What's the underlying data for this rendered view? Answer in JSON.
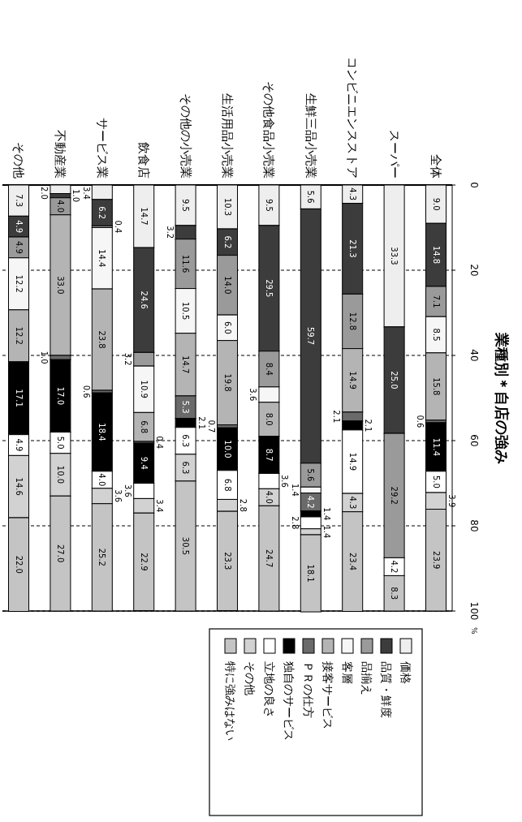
{
  "chart_data": {
    "type": "bar",
    "stacked": true,
    "title": "業種別＊自店の強み",
    "ylabel": "%",
    "categories": [
      "その他",
      "不動産業",
      "サービス業",
      "飲食店",
      "その他の小売業",
      "生活用品小売業",
      "その他食品小売業",
      "生鮮三品小売業",
      "コンビニエンスストア",
      "スーパー",
      "全体"
    ],
    "ylim": [
      100,
      0
    ],
    "yticks": [
      0,
      20,
      40,
      60,
      80,
      100
    ],
    "grid": "y",
    "legend": "bottom right",
    "series": [
      {
        "name": "価格",
        "color": "#eeeeee",
        "values": [
          7.3,
          2.0,
          3.4,
          14.7,
          9.5,
          10.3,
          9.5,
          5.6,
          4.3,
          33.3,
          9.0
        ],
        "value_labels": [
          "7.3",
          "2.0",
          "3.4",
          "14.7",
          "9.5",
          "10.3",
          "9.5",
          "5.6",
          "4.3",
          "33.3",
          "9.0"
        ]
      },
      {
        "name": "品質・鮮度",
        "color": "#3c3c3c",
        "values": [
          4.9,
          1.0,
          6.2,
          24.6,
          3.2,
          6.2,
          29.5,
          59.7,
          21.3,
          25.0,
          14.8
        ],
        "value_labels": [
          "4.9",
          "1.0",
          "6.2",
          "24.6",
          "3.2",
          "6.2",
          "29.5",
          "59.7",
          "21.3",
          "25.0",
          "14.8"
        ]
      },
      {
        "name": "品揃え",
        "color": "#9a9a9a",
        "values": [
          4.9,
          4.0,
          0.4,
          3.2,
          11.6,
          14.0,
          8.4,
          5.6,
          12.8,
          29.2,
          7.1
        ],
        "value_labels": [
          "4.9",
          "4.0",
          "0.4",
          "3.2",
          "11.6",
          "14.0",
          "8.4",
          "5.6",
          "12.8",
          "29.2",
          "7.1"
        ]
      },
      {
        "name": "客層",
        "color": "#f6f6f6",
        "values": [
          12.2,
          null,
          14.4,
          10.9,
          10.5,
          6.0,
          3.6,
          1.4,
          null,
          null,
          8.5
        ],
        "value_labels": [
          "12.2",
          null,
          "14.4",
          "10.9",
          "10.5",
          "6.0",
          "3.6",
          "1.4",
          null,
          null,
          "8.5"
        ]
      },
      {
        "name": "接客サービス",
        "color": "#b4b4b4",
        "values": [
          12.2,
          33.0,
          23.8,
          6.8,
          14.7,
          19.8,
          8.0,
          null,
          14.9,
          null,
          15.8
        ],
        "value_labels": [
          "12.2",
          "33.0",
          "23.8",
          "6.8",
          "14.7",
          "19.8",
          "8.0",
          null,
          "14.9",
          null,
          "15.8"
        ]
      },
      {
        "name": "ＰＲの仕方",
        "color": "#6a6a6a",
        "values": [
          null,
          1.0,
          0.6,
          0.4,
          5.3,
          0.7,
          null,
          4.2,
          2.1,
          null,
          0.6
        ],
        "value_labels": [
          null,
          "1.0",
          "0.6",
          "0.4",
          "5.3",
          "0.7",
          null,
          "4.2",
          "2.1",
          null,
          "0.6"
        ]
      },
      {
        "name": "独自のサービス",
        "color": "#000000",
        "values": [
          17.1,
          17.0,
          18.4,
          9.4,
          2.1,
          10.0,
          8.7,
          1.4,
          2.1,
          null,
          11.4
        ],
        "value_labels": [
          "17.1",
          "17.0",
          "18.4",
          "9.4",
          "2.1",
          "10.0",
          "8.7",
          "1.4",
          "2.1",
          null,
          "11.4"
        ]
      },
      {
        "name": "立地の良さ",
        "color": "#ffffff",
        "values": [
          4.9,
          5.0,
          4.0,
          3.6,
          6.3,
          6.8,
          3.6,
          2.8,
          14.9,
          4.2,
          5.0
        ],
        "value_labels": [
          "4.9",
          "5.0",
          "4.0",
          "3.6",
          "6.3",
          "6.8",
          "3.6",
          "2.8",
          "14.9",
          "4.2",
          "5.0"
        ]
      },
      {
        "name": "その他",
        "color": "#d2d2d2",
        "values": [
          14.6,
          10.0,
          3.6,
          3.4,
          6.3,
          2.8,
          4.0,
          1.4,
          4.3,
          null,
          3.9
        ],
        "value_labels": [
          "14.6",
          "10.0",
          "3.6",
          "3.4",
          "6.3",
          "2.8",
          "4.0",
          "1.4",
          "4.3",
          null,
          "3.9"
        ]
      },
      {
        "name": "特に強みはない",
        "color": "#c4c4c4",
        "values": [
          22.0,
          27.0,
          25.2,
          22.9,
          30.5,
          23.3,
          24.7,
          18.1,
          23.4,
          8.3,
          23.9
        ],
        "value_labels": [
          "22.0",
          "27.0",
          "25.2",
          "22.9",
          "30.5",
          "23.3",
          "24.7",
          "18.1",
          "23.4",
          "8.3",
          "23.9"
        ]
      }
    ]
  }
}
